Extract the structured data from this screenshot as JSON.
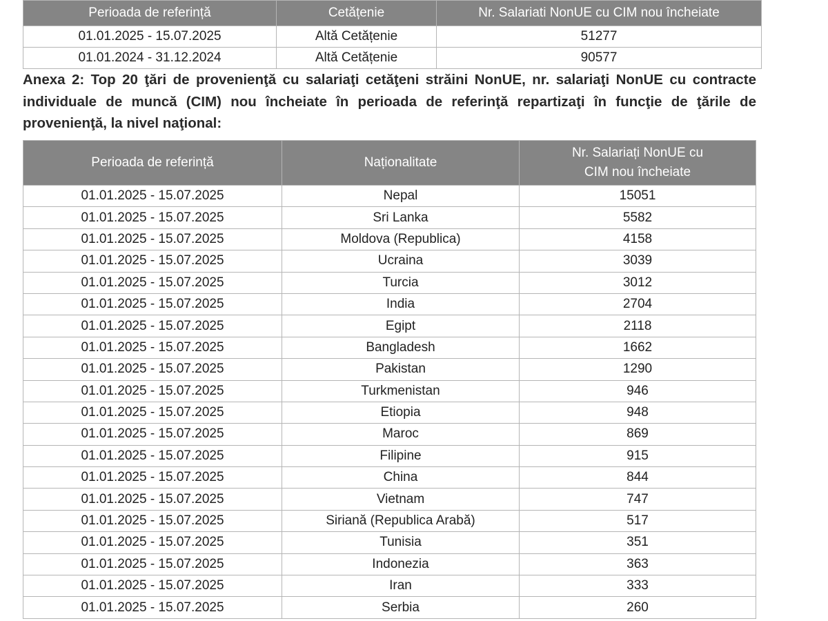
{
  "table1": {
    "headers": [
      "Perioada de referință",
      "Cetățenie",
      "Nr. Salariati NonUE cu CIM nou încheiate"
    ],
    "rows": [
      [
        "01.01.2025 - 15.07.2025",
        "Altă Cetățenie",
        "51277"
      ],
      [
        "01.01.2024 - 31.12.2024",
        "Altă Cetățenie",
        "90577"
      ]
    ]
  },
  "annex_text": "Anexa 2: Top 20 ţări de provenienţă cu salariaţi cetăţeni străini NonUE, nr. salariaţi NonUE cu contracte individuale de muncă (CIM) nou încheiate în perioada de referinţă repartizaţi în funcţie de ţările de provenienţă, la nivel naţional:",
  "table2": {
    "headers": [
      "Perioada de referință",
      "Naționalitate",
      "Nr. Salariați NonUE cu CIM nou încheiate"
    ],
    "rows": [
      [
        "01.01.2025 - 15.07.2025",
        "Nepal",
        "15051"
      ],
      [
        "01.01.2025 - 15.07.2025",
        "Sri Lanka",
        "5582"
      ],
      [
        "01.01.2025 - 15.07.2025",
        "Moldova (Republica)",
        "4158"
      ],
      [
        "01.01.2025 - 15.07.2025",
        "Ucraina",
        "3039"
      ],
      [
        "01.01.2025 - 15.07.2025",
        "Turcia",
        "3012"
      ],
      [
        "01.01.2025 - 15.07.2025",
        "India",
        "2704"
      ],
      [
        "01.01.2025 - 15.07.2025",
        "Egipt",
        "2118"
      ],
      [
        "01.01.2025 - 15.07.2025",
        "Bangladesh",
        "1662"
      ],
      [
        "01.01.2025 - 15.07.2025",
        "Pakistan",
        "1290"
      ],
      [
        "01.01.2025 - 15.07.2025",
        "Turkmenistan",
        "946"
      ],
      [
        "01.01.2025 - 15.07.2025",
        "Etiopia",
        "948"
      ],
      [
        "01.01.2025 - 15.07.2025",
        "Maroc",
        "869"
      ],
      [
        "01.01.2025 - 15.07.2025",
        "Filipine",
        "915"
      ],
      [
        "01.01.2025 - 15.07.2025",
        "China",
        "844"
      ],
      [
        "01.01.2025 - 15.07.2025",
        "Vietnam",
        "747"
      ],
      [
        "01.01.2025 - 15.07.2025",
        "Siriană (Republica Arabă)",
        "517"
      ],
      [
        "01.01.2025 - 15.07.2025",
        "Tunisia",
        "351"
      ],
      [
        "01.01.2025 - 15.07.2025",
        "Indonezia",
        "363"
      ],
      [
        "01.01.2025 - 15.07.2025",
        "Iran",
        "333"
      ],
      [
        "01.01.2025 - 15.07.2025",
        "Serbia",
        "260"
      ]
    ]
  },
  "colors": {
    "header_bg": "#858585",
    "header_text": "#ffffff",
    "border": "#b5b5b5"
  }
}
